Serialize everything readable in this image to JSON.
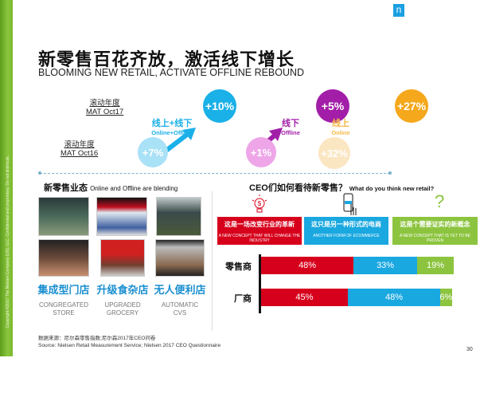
{
  "sidebar": {
    "copyright": "Copyright ©2017 The Nielsen Company (US), LLC. Confidential and proprietary. Do not distribute."
  },
  "logo": "n",
  "header": {
    "title": "新零售百花齐放，激活线下增长",
    "subtitle": "BLOOMING NEW RETAIL, ACTIVATE OFFLINE REBOUND"
  },
  "growth": {
    "mat17": {
      "cn": "滚动年度",
      "en": "MAT Oct17"
    },
    "mat16": {
      "cn": "滚动年度",
      "en": "MAT Oct16"
    },
    "segments": [
      {
        "cn": "线上+线下",
        "en": "Online+Offline",
        "prev": "+7%",
        "curr": "+10%",
        "color": "#1ab0e8",
        "light": "#a9e1f7"
      },
      {
        "cn": "线下",
        "en": "Offline",
        "prev": "+1%",
        "curr": "+5%",
        "color": "#a21ea8",
        "light": "#eea6e8"
      },
      {
        "cn": "线上",
        "en": "Online",
        "prev": "+32%",
        "curr": "+27%",
        "color": "#f5a81c",
        "light": "#fbe6c2"
      }
    ]
  },
  "formats": {
    "heading": "新零售业态",
    "heading_en": "Online and Offline are blending",
    "items": [
      {
        "cn": "集成型门店",
        "en1": "CONGREGATED",
        "en2": "STORE"
      },
      {
        "cn": "升级食杂店",
        "en1": "UPGRADED",
        "en2": "GROCERY"
      },
      {
        "cn": "无人便利店",
        "en1": "AUTOMATIC",
        "en2": "CVS"
      }
    ]
  },
  "ceo": {
    "heading": "CEO们如何看待新零售？",
    "heading_en": "What do you think new retail?",
    "options": [
      {
        "cn": "这是一场改变行业的革新",
        "en": "A NEW CONCEPT THAT WILL CHANGE THE INDUSTRY",
        "color": "#d7001c"
      },
      {
        "cn": "这只是另一种形式的电商",
        "en": "ANOTHER FORM OF ECOMMERCE",
        "color": "#1aa8e0"
      },
      {
        "cn": "这是个需要证实的新概念",
        "en": "A NEW CONCEPT THAT IS YET TO BE PROVEN",
        "color": "#8cc43f"
      }
    ]
  },
  "chart_data": {
    "type": "bar",
    "stacked": true,
    "orientation": "horizontal",
    "categories": [
      "零售商",
      "厂商"
    ],
    "series": [
      {
        "name": "这是一场改变行业的革新",
        "values": [
          48,
          45
        ],
        "labels": [
          "48%",
          "45%"
        ]
      },
      {
        "name": "这只是另一种形式的电商",
        "values": [
          33,
          48
        ],
        "labels": [
          "33%",
          "48%"
        ]
      },
      {
        "name": "这是个需要证实的新概念",
        "values": [
          19,
          6
        ],
        "labels": [
          "19%",
          "6%"
        ]
      }
    ],
    "xlim": [
      0,
      100
    ]
  },
  "footer": {
    "line1": "数据来源：尼尔森零售指数;尼尔森2017年CEO问卷",
    "line2": "Source: Nielsen Retail Measurement Service; Nielsen 2017 CEO Questionnaire"
  },
  "page_number": "30"
}
